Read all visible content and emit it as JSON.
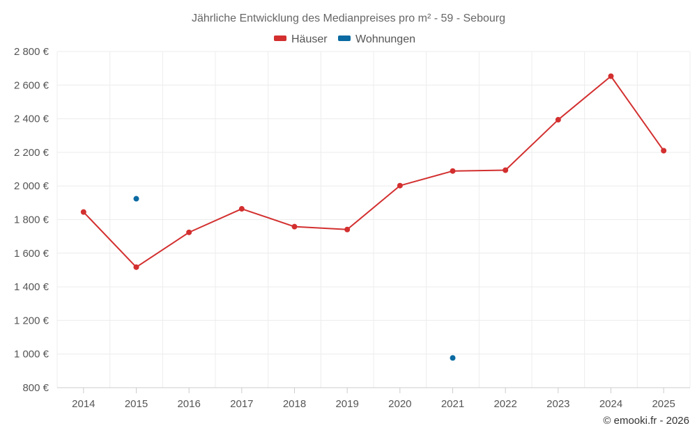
{
  "chart_data": {
    "type": "line",
    "title": "Jährliche Entwicklung des Medianpreises pro m² - 59 - Sebourg",
    "categories": [
      "2014",
      "2015",
      "2016",
      "2017",
      "2018",
      "2019",
      "2020",
      "2021",
      "2022",
      "2023",
      "2024",
      "2025"
    ],
    "series": [
      {
        "name": "Häuser",
        "color": "#d32f2f",
        "values": [
          1845,
          1517,
          1724,
          1864,
          1758,
          1741,
          2002,
          2089,
          2094,
          2394,
          2653,
          2210
        ]
      },
      {
        "name": "Wohnungen",
        "color": "#0a6aa1",
        "values": [
          null,
          1924,
          null,
          null,
          null,
          null,
          null,
          977,
          null,
          null,
          null,
          null
        ]
      }
    ],
    "y_ticks": [
      800,
      1000,
      1200,
      1400,
      1600,
      1800,
      2000,
      2200,
      2400,
      2600,
      2800
    ],
    "y_tick_labels": [
      "800 €",
      "1 000 €",
      "1 200 €",
      "1 400 €",
      "1 600 €",
      "1 800 €",
      "2 000 €",
      "2 200 €",
      "2 400 €",
      "2 600 €",
      "2 800 €"
    ],
    "ylim": [
      800,
      2800
    ],
    "xlabel": "",
    "ylabel": "",
    "grid": true,
    "legend_position": "top-center"
  },
  "credit": "© emooki.fr - 2026"
}
